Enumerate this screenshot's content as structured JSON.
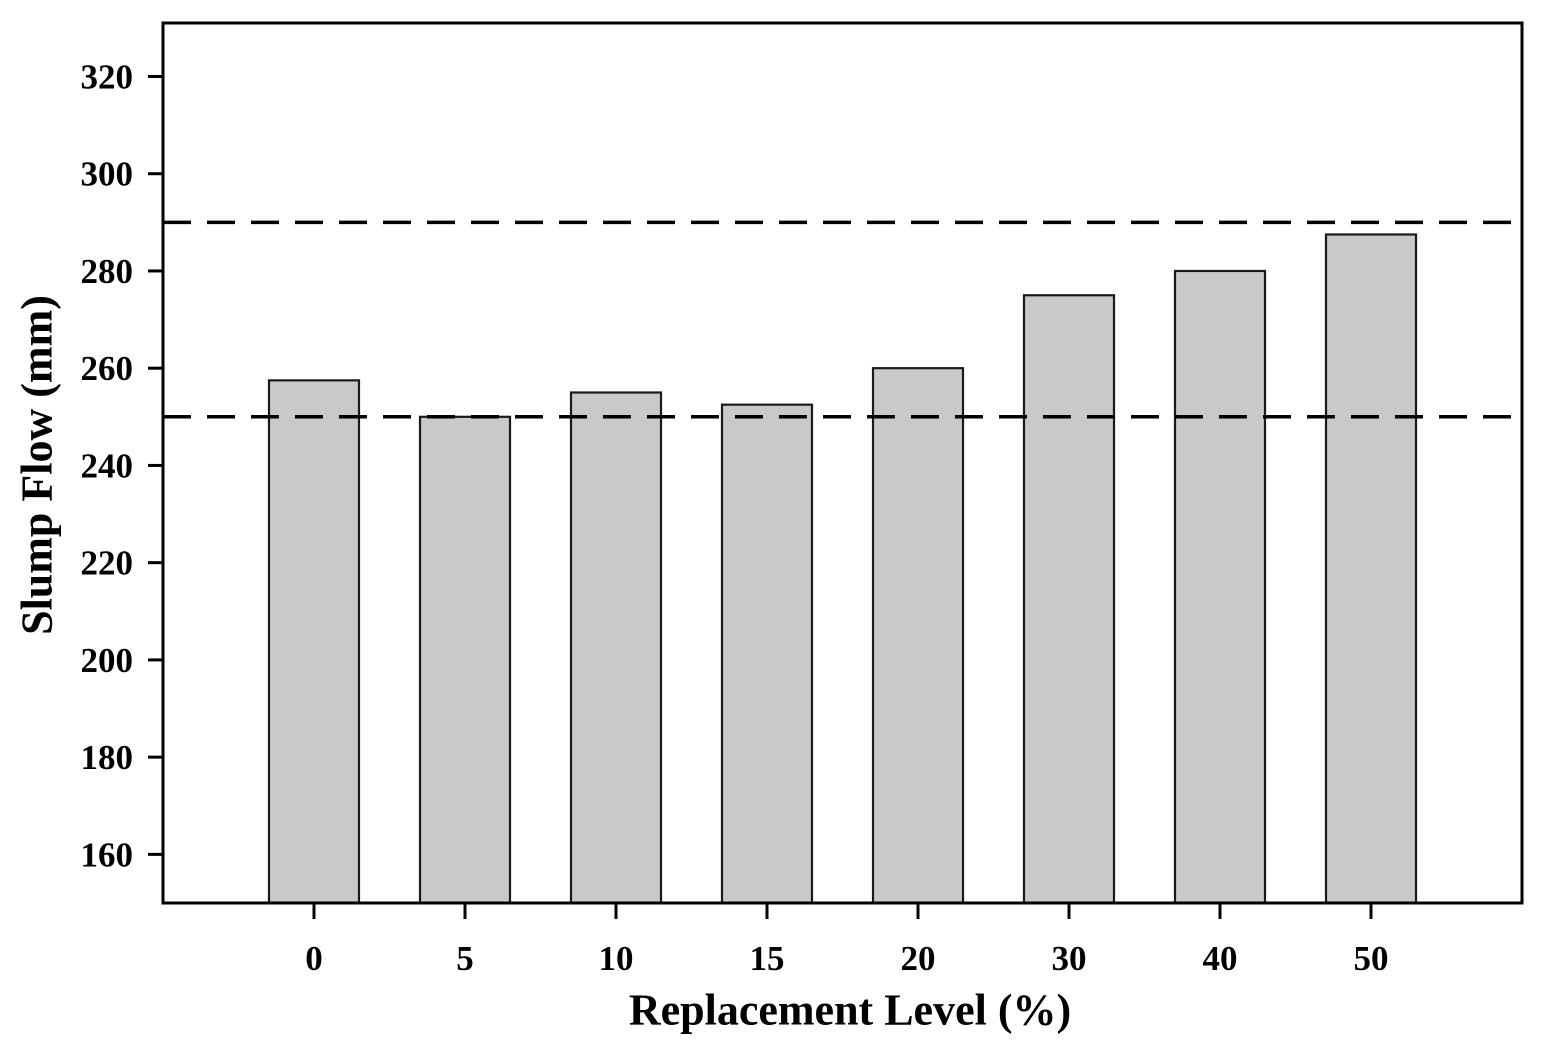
{
  "figure": {
    "background": "#ffffff"
  },
  "chart_data": {
    "type": "bar",
    "categories": [
      "0",
      "5",
      "10",
      "15",
      "20",
      "30",
      "40",
      "50"
    ],
    "values": [
      257.5,
      250,
      255,
      252.5,
      260,
      275,
      280,
      287.5
    ],
    "title": "",
    "xlabel": "Replacement Level (%)",
    "ylabel": "Slump Flow (mm)",
    "yticks": [
      160,
      180,
      200,
      220,
      240,
      260,
      280,
      300,
      320
    ],
    "ylim": [
      150,
      331
    ],
    "reference_lines": [
      {
        "value": 250,
        "style": "dashed",
        "color": "#000000"
      },
      {
        "value": 290,
        "style": "dashed",
        "color": "#000000"
      }
    ],
    "grid": false,
    "legend_position": "none",
    "bar_fill": "#c9c9c9",
    "bar_border": "#1a1a1a",
    "axis_color": "#000000",
    "tick_label_color": "#000000"
  }
}
